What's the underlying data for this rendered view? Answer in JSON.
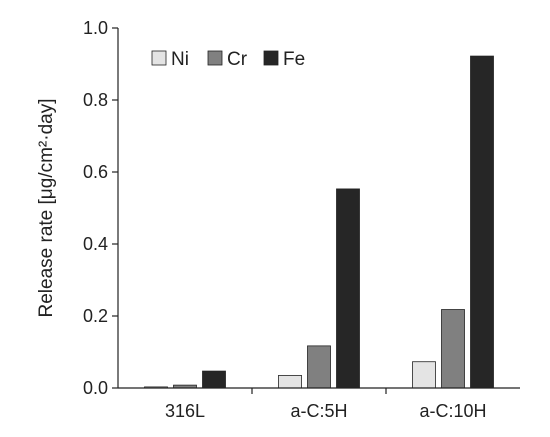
{
  "chart_data": {
    "type": "bar",
    "categories": [
      "316L",
      "a-C:5H",
      "a-C:10H"
    ],
    "series": [
      {
        "name": "Ni",
        "color": "#e4e4e4",
        "values": [
          0.003,
          0.035,
          0.073
        ]
      },
      {
        "name": "Cr",
        "color": "#808080",
        "values": [
          0.008,
          0.117,
          0.218
        ]
      },
      {
        "name": "Fe",
        "color": "#262626",
        "values": [
          0.047,
          0.553,
          0.922
        ]
      }
    ],
    "title": "",
    "xlabel": "",
    "ylabel": "Release rate [μg/cm²·day]",
    "ylim": [
      0,
      1.0
    ],
    "yticks": [
      "0.0",
      "0.2",
      "0.4",
      "0.6",
      "0.8",
      "1.0"
    ],
    "grid": false,
    "legend_position": "top-left"
  }
}
